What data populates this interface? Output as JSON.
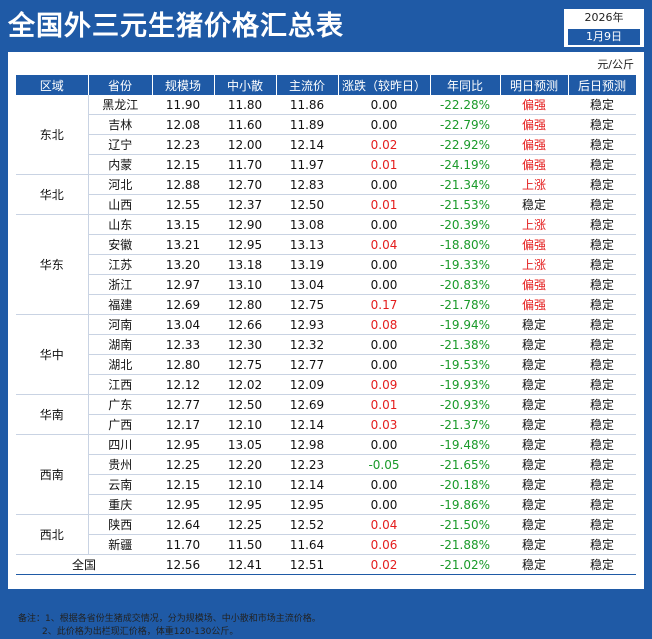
{
  "title": "全国外三元生猪价格汇总表",
  "date": {
    "year": "2026年",
    "day": "1月9日"
  },
  "unit": "元/公斤",
  "columns": [
    "区域",
    "省份",
    "规模场",
    "中小散",
    "主流价",
    "涨跌（较昨日）",
    "年同比",
    "明日预测",
    "后日预测"
  ],
  "regions": [
    {
      "name": "东北",
      "rows": [
        {
          "province": "黑龙江",
          "large": "11.90",
          "small": "11.80",
          "main": "11.86",
          "change": "0.00",
          "yoy": "-22.28%",
          "tomorrow": "偏强",
          "after": "稳定"
        },
        {
          "province": "吉林",
          "large": "12.08",
          "small": "11.60",
          "main": "11.89",
          "change": "0.00",
          "yoy": "-22.79%",
          "tomorrow": "偏强",
          "after": "稳定"
        },
        {
          "province": "辽宁",
          "large": "12.23",
          "small": "12.00",
          "main": "12.14",
          "change": "0.02",
          "yoy": "-22.92%",
          "tomorrow": "偏强",
          "after": "稳定"
        },
        {
          "province": "内蒙",
          "large": "12.15",
          "small": "11.70",
          "main": "11.97",
          "change": "0.01",
          "yoy": "-24.19%",
          "tomorrow": "偏强",
          "after": "稳定"
        }
      ]
    },
    {
      "name": "华北",
      "rows": [
        {
          "province": "河北",
          "large": "12.88",
          "small": "12.70",
          "main": "12.83",
          "change": "0.00",
          "yoy": "-21.34%",
          "tomorrow": "上涨",
          "after": "稳定"
        },
        {
          "province": "山西",
          "large": "12.55",
          "small": "12.37",
          "main": "12.50",
          "change": "0.01",
          "yoy": "-21.53%",
          "tomorrow": "稳定",
          "after": "稳定"
        }
      ]
    },
    {
      "name": "华东",
      "rows": [
        {
          "province": "山东",
          "large": "13.15",
          "small": "12.90",
          "main": "13.08",
          "change": "0.00",
          "yoy": "-20.39%",
          "tomorrow": "上涨",
          "after": "稳定"
        },
        {
          "province": "安徽",
          "large": "13.21",
          "small": "12.95",
          "main": "13.13",
          "change": "0.04",
          "yoy": "-18.80%",
          "tomorrow": "偏强",
          "after": "稳定"
        },
        {
          "province": "江苏",
          "large": "13.20",
          "small": "13.18",
          "main": "13.19",
          "change": "0.00",
          "yoy": "-19.33%",
          "tomorrow": "上涨",
          "after": "稳定"
        },
        {
          "province": "浙江",
          "large": "12.97",
          "small": "13.10",
          "main": "13.04",
          "change": "0.00",
          "yoy": "-20.83%",
          "tomorrow": "偏强",
          "after": "稳定"
        },
        {
          "province": "福建",
          "large": "12.69",
          "small": "12.80",
          "main": "12.75",
          "change": "0.17",
          "yoy": "-21.78%",
          "tomorrow": "偏强",
          "after": "稳定"
        }
      ]
    },
    {
      "name": "华中",
      "rows": [
        {
          "province": "河南",
          "large": "13.04",
          "small": "12.66",
          "main": "12.93",
          "change": "0.08",
          "yoy": "-19.94%",
          "tomorrow": "稳定",
          "after": "稳定"
        },
        {
          "province": "湖南",
          "large": "12.33",
          "small": "12.30",
          "main": "12.32",
          "change": "0.00",
          "yoy": "-21.38%",
          "tomorrow": "稳定",
          "after": "稳定"
        },
        {
          "province": "湖北",
          "large": "12.80",
          "small": "12.75",
          "main": "12.77",
          "change": "0.00",
          "yoy": "-19.53%",
          "tomorrow": "稳定",
          "after": "稳定"
        },
        {
          "province": "江西",
          "large": "12.12",
          "small": "12.02",
          "main": "12.09",
          "change": "0.09",
          "yoy": "-19.93%",
          "tomorrow": "稳定",
          "after": "稳定"
        }
      ]
    },
    {
      "name": "华南",
      "rows": [
        {
          "province": "广东",
          "large": "12.77",
          "small": "12.50",
          "main": "12.69",
          "change": "0.01",
          "yoy": "-20.93%",
          "tomorrow": "稳定",
          "after": "稳定"
        },
        {
          "province": "广西",
          "large": "12.17",
          "small": "12.10",
          "main": "12.14",
          "change": "0.03",
          "yoy": "-21.37%",
          "tomorrow": "稳定",
          "after": "稳定"
        }
      ]
    },
    {
      "name": "西南",
      "rows": [
        {
          "province": "四川",
          "large": "12.95",
          "small": "13.05",
          "main": "12.98",
          "change": "0.00",
          "yoy": "-19.48%",
          "tomorrow": "稳定",
          "after": "稳定"
        },
        {
          "province": "贵州",
          "large": "12.25",
          "small": "12.20",
          "main": "12.23",
          "change": "-0.05",
          "yoy": "-21.65%",
          "tomorrow": "稳定",
          "after": "稳定"
        },
        {
          "province": "云南",
          "large": "12.15",
          "small": "12.10",
          "main": "12.14",
          "change": "0.00",
          "yoy": "-20.18%",
          "tomorrow": "稳定",
          "after": "稳定"
        },
        {
          "province": "重庆",
          "large": "12.95",
          "small": "12.95",
          "main": "12.95",
          "change": "0.00",
          "yoy": "-19.86%",
          "tomorrow": "稳定",
          "after": "稳定"
        }
      ]
    },
    {
      "name": "西北",
      "rows": [
        {
          "province": "陕西",
          "large": "12.64",
          "small": "12.25",
          "main": "12.52",
          "change": "0.04",
          "yoy": "-21.50%",
          "tomorrow": "稳定",
          "after": "稳定"
        },
        {
          "province": "新疆",
          "large": "11.70",
          "small": "11.50",
          "main": "11.64",
          "change": "0.06",
          "yoy": "-21.88%",
          "tomorrow": "稳定",
          "after": "稳定"
        }
      ]
    }
  ],
  "total": {
    "label": "全国",
    "large": "12.56",
    "small": "12.41",
    "main": "12.51",
    "change": "0.02",
    "yoy": "-21.02%",
    "tomorrow": "稳定",
    "after": "稳定"
  },
  "notes": [
    "备注：1、根据各省份生猪成交情况，分为规模场、中小散和市场主流价格。",
    "2、此价格为出栏现汇价格，体重120-130公斤。"
  ],
  "colors": {
    "brand": "#1f5aa6",
    "up": "#e41c1c",
    "down": "#1a9a2a"
  }
}
